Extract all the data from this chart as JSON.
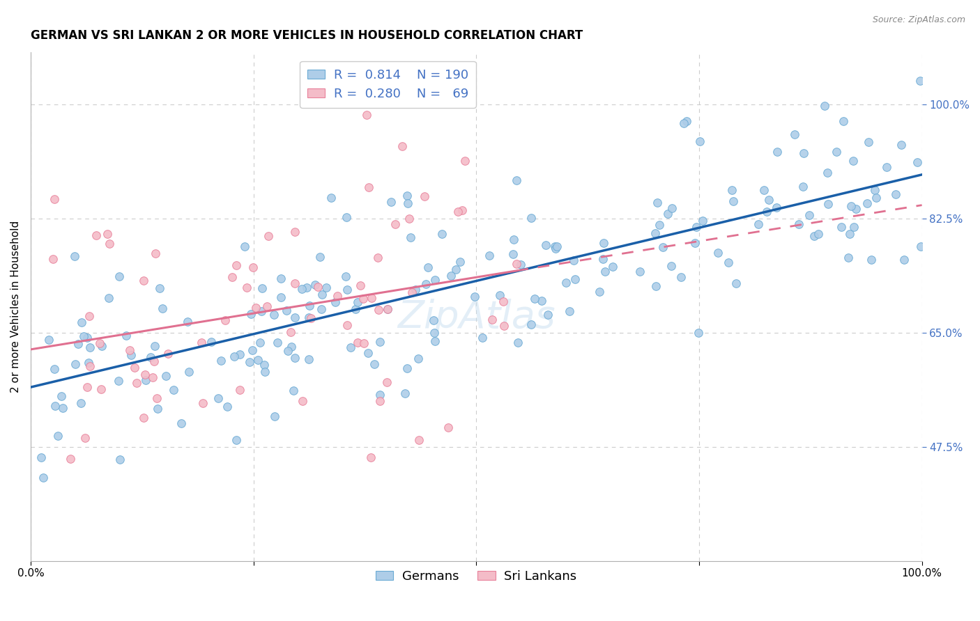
{
  "title": "GERMAN VS SRI LANKAN 2 OR MORE VEHICLES IN HOUSEHOLD CORRELATION CHART",
  "source": "Source: ZipAtlas.com",
  "ylabel": "2 or more Vehicles in Household",
  "watermark": "ZipAtlas",
  "xlim": [
    0.0,
    1.0
  ],
  "ylim": [
    0.3,
    1.08
  ],
  "xticks": [
    0.0,
    0.25,
    0.5,
    0.75,
    1.0
  ],
  "xticklabels": [
    "0.0%",
    "",
    "",
    "",
    "100.0%"
  ],
  "ytick_positions": [
    0.475,
    0.65,
    0.825,
    1.0
  ],
  "ytick_labels": [
    "47.5%",
    "65.0%",
    "82.5%",
    "100.0%"
  ],
  "german_color": "#aecde8",
  "german_edge_color": "#6aaad4",
  "german_line_color": "#1a5fa8",
  "srilankan_color": "#f4bcc8",
  "srilankan_edge_color": "#e8809a",
  "srilankan_line_color": "#e07090",
  "legend_text_color": "#4472c4",
  "R_german": 0.814,
  "N_german": 190,
  "R_srilankan": 0.28,
  "N_srilankan": 69,
  "random_seed": 77,
  "background_color": "#ffffff",
  "grid_color": "#cccccc",
  "title_fontsize": 12,
  "axis_fontsize": 11,
  "tick_fontsize": 11,
  "legend_fontsize": 13,
  "source_fontsize": 9
}
